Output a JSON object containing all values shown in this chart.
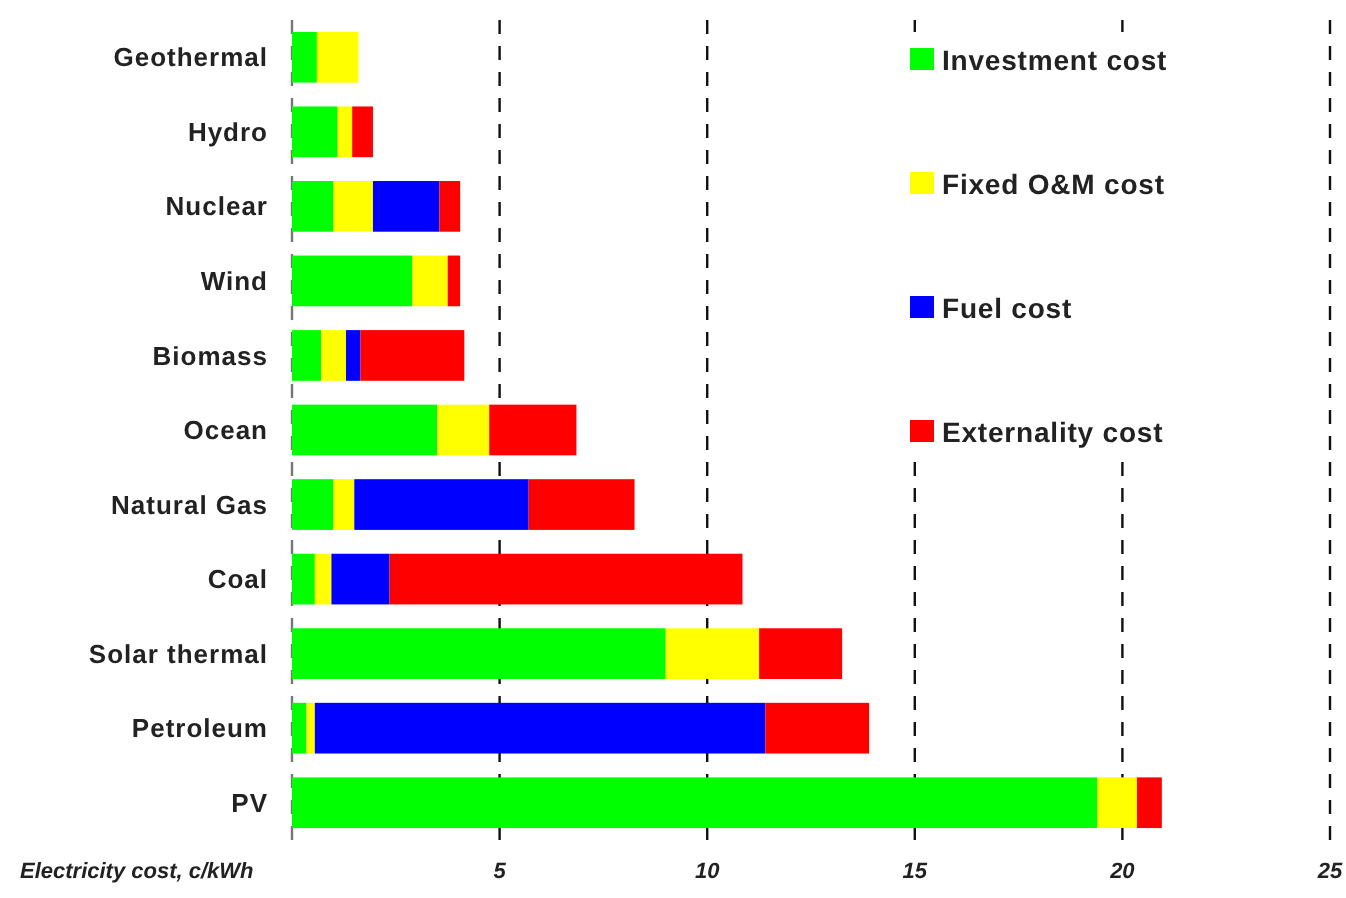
{
  "chart_data": {
    "type": "bar",
    "orientation": "horizontal",
    "stacked": true,
    "xlabel": "Electricity cost, c/kWh",
    "categories": [
      "Geothermal",
      "Hydro",
      "Nuclear",
      "Wind",
      "Biomass",
      "Ocean",
      "Natural Gas",
      "Coal",
      "Solar thermal",
      "Petroleum",
      "PV"
    ],
    "series": [
      {
        "name": "Investment cost",
        "color": "#00ff00",
        "values": [
          0.6,
          1.1,
          1.0,
          2.9,
          0.7,
          3.5,
          1.0,
          0.55,
          9.0,
          0.35,
          19.4
        ]
      },
      {
        "name": "Fixed O&M cost",
        "color": "#ffff00",
        "values": [
          1.0,
          0.35,
          0.95,
          0.85,
          0.6,
          1.25,
          0.5,
          0.4,
          2.25,
          0.2,
          0.95
        ]
      },
      {
        "name": "Fuel cost",
        "color": "#0000ff",
        "values": [
          null,
          null,
          1.6,
          null,
          0.35,
          null,
          4.2,
          1.4,
          null,
          10.85,
          null
        ]
      },
      {
        "name": "Externality cost",
        "color": "#ff0000",
        "values": [
          null,
          0.5,
          0.5,
          0.3,
          2.5,
          2.1,
          2.55,
          8.5,
          2.0,
          2.5,
          0.6
        ]
      }
    ],
    "xlim": [
      0,
      25
    ],
    "xticks": [
      {
        "value": 0,
        "label": null
      },
      5,
      10,
      15,
      20,
      25
    ],
    "grid": "x",
    "legend": "top right"
  }
}
